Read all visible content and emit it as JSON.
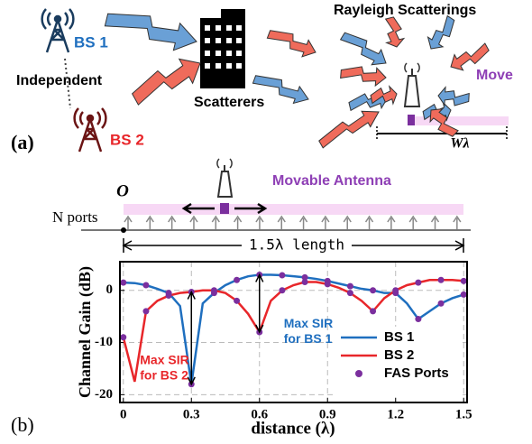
{
  "panel_labels": [
    "(a)",
    "(b)"
  ],
  "diagram": {
    "bs1": "BS 1",
    "bs2": "BS 2",
    "independent": "Independent",
    "scatterers": "Scatterers",
    "rayleigh": "Rayleigh Scatterings",
    "move": "Move",
    "width": "Wλ",
    "origin": "O",
    "ports": "N  ports",
    "movable": "Movable Antenna",
    "length": "1.5λ length"
  },
  "chart_data": {
    "type": "line",
    "ylabel": "Channel Gain (dB)",
    "xlabel": "distance (λ)",
    "x": [
      0,
      0.05,
      0.1,
      0.15,
      0.2,
      0.25,
      0.3,
      0.35,
      0.4,
      0.45,
      0.5,
      0.55,
      0.6,
      0.65,
      0.7,
      0.75,
      0.8,
      0.85,
      0.9,
      0.95,
      1.0,
      1.05,
      1.1,
      1.15,
      1.2,
      1.25,
      1.3,
      1.35,
      1.4,
      1.45,
      1.5
    ],
    "series": [
      {
        "name": "BS 1",
        "color": "#1f6fbf",
        "values": [
          1.5,
          1.4,
          1.0,
          0.3,
          -0.5,
          -3,
          -18,
          -2.5,
          -0.5,
          1,
          2,
          2.7,
          3,
          3,
          2.9,
          2.7,
          2.5,
          2.2,
          1.8,
          1.3,
          0.8,
          0.3,
          0,
          -0.5,
          -0.5,
          -2.5,
          -5.5,
          -4,
          -2.5,
          -1.5,
          -0.8
        ]
      },
      {
        "name": "BS 2",
        "color": "#e8262a",
        "values": [
          -9,
          -17.5,
          -4,
          -2,
          -1,
          -0.5,
          -0.3,
          0,
          0,
          -0.5,
          -2,
          -4.5,
          -8,
          -2,
          0,
          1,
          1.6,
          1.6,
          1.2,
          0.5,
          -0.5,
          -2,
          -4,
          -1.5,
          0,
          1,
          1.5,
          2,
          2,
          2,
          1.8
        ]
      }
    ],
    "ports": {
      "name": "FAS Ports",
      "color": "#7b2f9e",
      "x": [
        0,
        0.1,
        0.2,
        0.3,
        0.4,
        0.5,
        0.6,
        0.7,
        0.8,
        0.9,
        1.0,
        1.1,
        1.2,
        1.3,
        1.4,
        1.5,
        0,
        0.1,
        0.2,
        0.3,
        0.4,
        0.5,
        0.6,
        0.7,
        0.8,
        0.9,
        1.0,
        1.1,
        1.2,
        1.3,
        1.4,
        1.5
      ],
      "values": [
        1.5,
        1.0,
        -0.5,
        -18,
        -0.5,
        2,
        3,
        2.9,
        2.5,
        1.8,
        0.8,
        0,
        -0.5,
        -5.5,
        -2.5,
        -0.8,
        -9,
        -4,
        -1,
        -0.3,
        0,
        -2,
        -8,
        0,
        1.6,
        1.2,
        -0.5,
        -4,
        0,
        1.5,
        2,
        1.8
      ]
    },
    "annotations": [
      {
        "lines": [
          "Max SIR",
          "for BS 2"
        ],
        "color": "#e8262a"
      },
      {
        "lines": [
          "Max SIR",
          "for BS 1"
        ],
        "color": "#1f6fbf"
      }
    ],
    "xlim": [
      -0.015,
      1.515
    ],
    "ylim": [
      -21.5,
      5.5
    ],
    "xticks": [
      0,
      0.3,
      0.6,
      0.9,
      1.2,
      1.5
    ],
    "yticks": [
      -20,
      -10,
      0
    ],
    "grid": true,
    "legend": "lower right"
  }
}
